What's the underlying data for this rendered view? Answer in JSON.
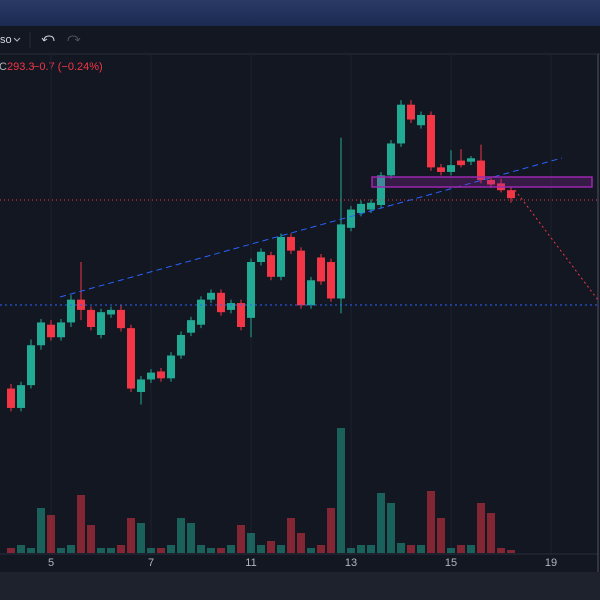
{
  "toolbar": {
    "symbol_menu": "so"
  },
  "chart_data": {
    "type": "candlestick",
    "legend": {
      "label": "C",
      "close": "293.3",
      "change": "−0.7 (−0.24%)"
    },
    "x": [
      0,
      1,
      2,
      3,
      4,
      5,
      6,
      7,
      8,
      9,
      10,
      11,
      12,
      13,
      14,
      15,
      16,
      17,
      18,
      19,
      20,
      21,
      22,
      23,
      24,
      25,
      26,
      27,
      28,
      29,
      30,
      31,
      32,
      33,
      34,
      35,
      36,
      37,
      38,
      39,
      40,
      41,
      42,
      43,
      44,
      45,
      46,
      47,
      48,
      49,
      50
    ],
    "open": [
      276.6,
      274.9,
      276.9,
      280.4,
      282.2,
      281.1,
      282.4,
      284.4,
      283.5,
      281.3,
      283.1,
      283.5,
      281.9,
      276.3,
      277.4,
      278.1,
      277.5,
      279.5,
      281.5,
      282.2,
      284.4,
      285.0,
      283.5,
      284.1,
      282.8,
      287.7,
      288.3,
      286.4,
      289.9,
      288.7,
      283.9,
      288.1,
      287.7,
      284.5,
      290.7,
      292.0,
      292.3,
      292.7,
      295.3,
      298.1,
      301.5,
      299.7,
      300.6,
      296.0,
      295.6,
      296.6,
      296.5,
      296.6,
      294.9,
      294.6,
      294.0
    ],
    "high": [
      277.0,
      277.2,
      280.9,
      282.7,
      282.6,
      282.7,
      284.8,
      287.7,
      283.8,
      283.6,
      283.8,
      283.9,
      282.2,
      277.7,
      278.3,
      278.4,
      279.8,
      281.6,
      282.9,
      284.7,
      285.3,
      285.3,
      284.4,
      284.4,
      288.0,
      288.9,
      288.6,
      290.2,
      290.2,
      289.0,
      286.4,
      288.4,
      288.0,
      298.6,
      292.6,
      293.1,
      293.2,
      295.6,
      298.4,
      301.9,
      301.9,
      300.9,
      300.9,
      296.3,
      297.5,
      297.6,
      297.0,
      298.0,
      295.2,
      295.0,
      294.3
    ],
    "low": [
      274.6,
      274.6,
      276.6,
      280.0,
      280.8,
      280.8,
      282.0,
      282.6,
      281.7,
      281.0,
      282.8,
      281.6,
      276.3,
      275.2,
      277.1,
      277.2,
      277.2,
      279.2,
      281.2,
      281.9,
      284.1,
      283.0,
      283.2,
      281.7,
      281.1,
      287.4,
      286.1,
      286.1,
      288.4,
      283.6,
      283.6,
      285.7,
      284.2,
      283.2,
      290.4,
      291.7,
      292.0,
      292.4,
      295.0,
      297.8,
      299.9,
      299.4,
      295.7,
      295.3,
      295.3,
      296.0,
      296.2,
      294.6,
      294.2,
      293.8,
      292.9
    ],
    "close": [
      274.9,
      276.9,
      280.4,
      282.4,
      281.1,
      282.4,
      284.4,
      283.5,
      282.0,
      283.3,
      283.5,
      281.9,
      276.6,
      277.4,
      278.0,
      277.5,
      279.5,
      281.3,
      282.6,
      284.4,
      285.0,
      283.3,
      284.1,
      282.0,
      287.7,
      288.6,
      286.4,
      289.9,
      288.7,
      283.9,
      286.1,
      286.0,
      284.5,
      291.0,
      292.3,
      292.8,
      292.9,
      295.3,
      298.1,
      301.5,
      300.2,
      300.6,
      296.0,
      295.6,
      296.2,
      296.2,
      296.8,
      294.9,
      294.5,
      294.0,
      293.3
    ],
    "volume": [
      5,
      8,
      5,
      45,
      38,
      5,
      8,
      58,
      28,
      5,
      5,
      8,
      35,
      30,
      5,
      5,
      8,
      35,
      30,
      8,
      5,
      5,
      8,
      28,
      20,
      8,
      12,
      8,
      35,
      20,
      5,
      8,
      45,
      125,
      5,
      8,
      8,
      60,
      50,
      10,
      8,
      8,
      62,
      35,
      5,
      8,
      8,
      50,
      40,
      5,
      3
    ],
    "up_color": "#22ab94",
    "down_color": "#f23645",
    "xlim": [
      -1.1,
      58.9
    ],
    "ylim": [
      262,
      307
    ],
    "volume_ylim": [
      0,
      500
    ],
    "xticks": [
      {
        "value": 4,
        "label": "5"
      },
      {
        "value": 14,
        "label": "7"
      },
      {
        "value": 24,
        "label": "11"
      },
      {
        "value": 34,
        "label": "13"
      },
      {
        "value": 44,
        "label": "15"
      },
      {
        "value": 54,
        "label": "19"
      }
    ],
    "grid": true
  }
}
